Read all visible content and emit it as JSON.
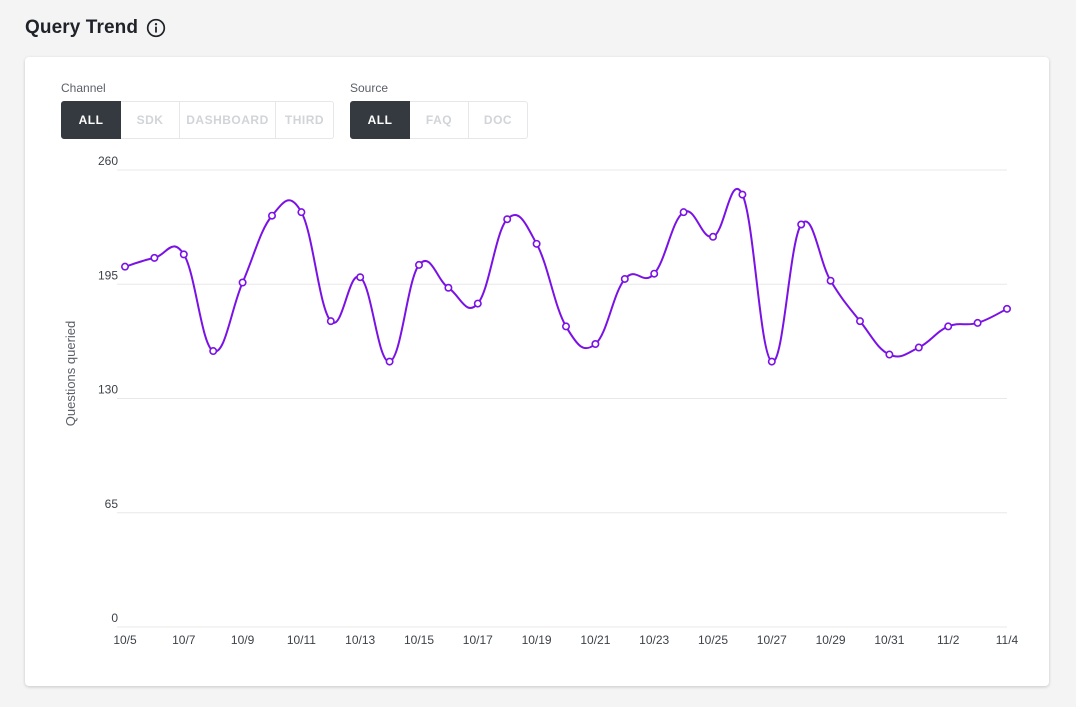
{
  "header": {
    "title": "Query Trend",
    "info_icon": "info-circle-icon"
  },
  "filters": {
    "channel": {
      "label": "Channel",
      "options": [
        "ALL",
        "SDK",
        "DASHBOARD",
        "THIRD"
      ],
      "selected": "ALL"
    },
    "source": {
      "label": "Source",
      "options": [
        "ALL",
        "FAQ",
        "DOC"
      ],
      "selected": "ALL"
    }
  },
  "colors": {
    "line": "#7a12e6",
    "active_button": "#343a40",
    "grid": "#e8e8e8"
  },
  "chart_data": {
    "type": "line",
    "ylabel": "Questions queried",
    "ylim": [
      0,
      260
    ],
    "yticks": [
      0,
      65,
      130,
      195,
      260
    ],
    "x_tick_labels": [
      "10/5",
      "10/7",
      "10/9",
      "10/11",
      "10/13",
      "10/15",
      "10/17",
      "10/19",
      "10/21",
      "10/23",
      "10/25",
      "10/27",
      "10/29",
      "10/31",
      "11/2",
      "11/4"
    ],
    "grid": true,
    "series": [
      {
        "x": [
          "10/5",
          "10/6",
          "10/7",
          "10/8",
          "10/9",
          "10/10",
          "10/11",
          "10/12",
          "10/13",
          "10/14",
          "10/15",
          "10/16",
          "10/17",
          "10/18",
          "10/19",
          "10/20",
          "10/21",
          "10/22",
          "10/23",
          "10/24",
          "10/25",
          "10/26",
          "10/27",
          "10/28",
          "10/29",
          "10/30",
          "10/31",
          "11/1",
          "11/2",
          "11/3",
          "11/4"
        ],
        "values": [
          205,
          210,
          212,
          157,
          196,
          234,
          236,
          174,
          199,
          151,
          206,
          193,
          184,
          232,
          218,
          171,
          161,
          198,
          201,
          236,
          222,
          246,
          151,
          229,
          197,
          174,
          155,
          159,
          171,
          173,
          181
        ]
      }
    ]
  }
}
